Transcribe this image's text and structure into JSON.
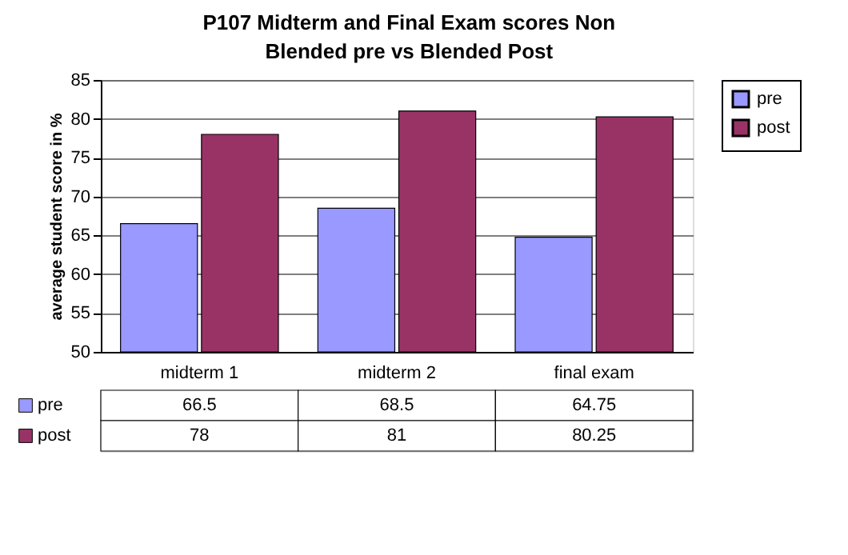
{
  "chart_data": {
    "type": "bar",
    "title": "P107 Midterm and Final Exam scores Non Blended pre vs Blended Post",
    "ylabel": "average student score in %",
    "categories": [
      "midterm 1",
      "midterm 2",
      "final exam"
    ],
    "series": [
      {
        "name": "pre",
        "color": "#9999ff",
        "values": [
          66.5,
          68.5,
          64.75
        ]
      },
      {
        "name": "post",
        "color": "#993366",
        "values": [
          78,
          81,
          80.25
        ]
      }
    ],
    "ylim": [
      50,
      85
    ],
    "yticks": [
      50,
      55,
      60,
      65,
      70,
      75,
      80,
      85
    ],
    "grid": "y",
    "legend": "right",
    "data_labels": true
  }
}
